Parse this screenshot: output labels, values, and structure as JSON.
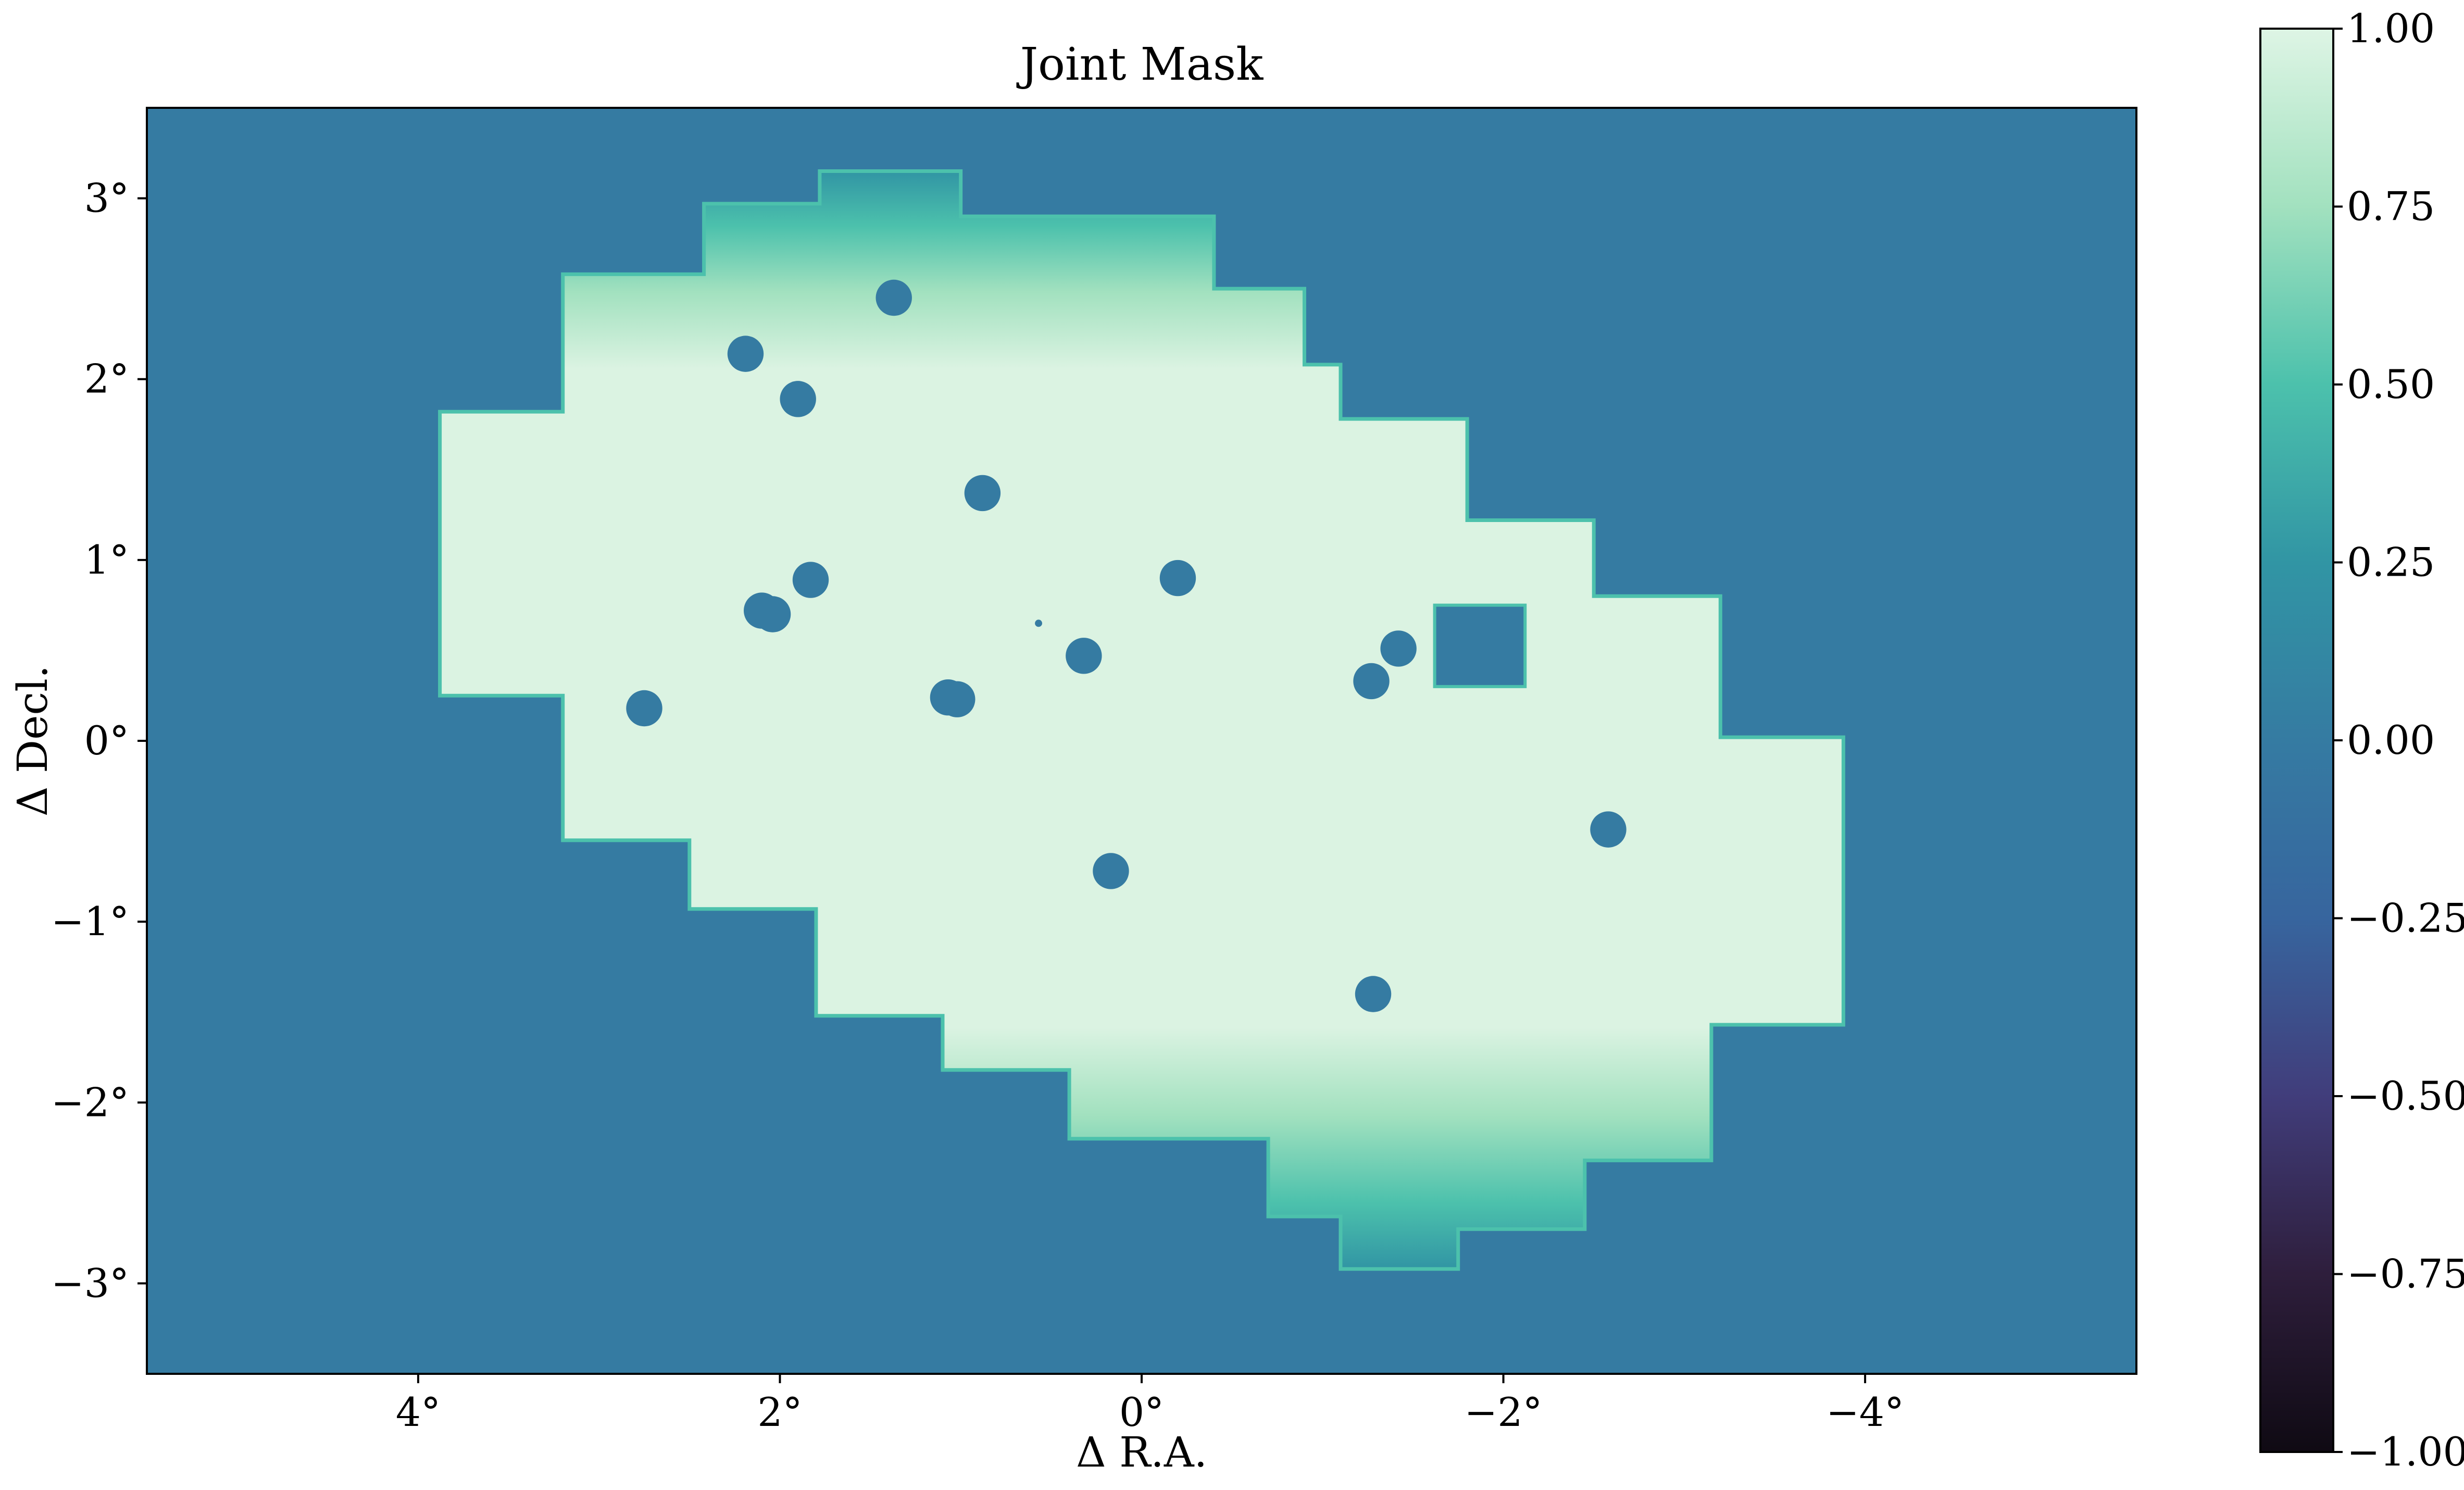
{
  "chart_data": {
    "type": "heatmap",
    "title": "Joint Mask",
    "xlabel": "Δ R.A.",
    "ylabel": "Δ Decl.",
    "xlim": [
      5.5,
      -5.5
    ],
    "ylim": [
      -3.5,
      3.5
    ],
    "x_ticks": [
      4,
      2,
      0,
      -2,
      -4
    ],
    "x_tick_labels": [
      "4°",
      "2°",
      "0°",
      "−2°",
      "−4°"
    ],
    "y_ticks": [
      3,
      2,
      1,
      0,
      -1,
      -2,
      -3
    ],
    "y_tick_labels": [
      "3°",
      "2°",
      "1°",
      "0°",
      "−1°",
      "−2°",
      "−3°"
    ],
    "background_value": 0.0,
    "mask_value": 0.92,
    "mask_outline_deg": [
      [
        1.78,
        3.15
      ],
      [
        1.0,
        3.15
      ],
      [
        1.0,
        2.9
      ],
      [
        -0.4,
        2.9
      ],
      [
        -0.4,
        2.5
      ],
      [
        -0.9,
        2.5
      ],
      [
        -0.9,
        2.08
      ],
      [
        -1.1,
        2.08
      ],
      [
        -1.1,
        1.78
      ],
      [
        -1.8,
        1.78
      ],
      [
        -1.8,
        1.22
      ],
      [
        -2.5,
        1.22
      ],
      [
        -2.5,
        0.8
      ],
      [
        -3.2,
        0.8
      ],
      [
        -3.2,
        0.02
      ],
      [
        -3.88,
        0.02
      ],
      [
        -3.88,
        -1.57
      ],
      [
        -3.15,
        -1.57
      ],
      [
        -3.15,
        -2.32
      ],
      [
        -2.45,
        -2.32
      ],
      [
        -2.45,
        -2.7
      ],
      [
        -1.75,
        -2.7
      ],
      [
        -1.75,
        -2.92
      ],
      [
        -1.1,
        -2.92
      ],
      [
        -1.1,
        -2.63
      ],
      [
        -0.7,
        -2.63
      ],
      [
        -0.7,
        -2.2
      ],
      [
        0.4,
        -2.2
      ],
      [
        0.4,
        -1.82
      ],
      [
        1.1,
        -1.82
      ],
      [
        1.1,
        -1.52
      ],
      [
        1.8,
        -1.52
      ],
      [
        1.8,
        -0.93
      ],
      [
        2.5,
        -0.93
      ],
      [
        2.5,
        -0.55
      ],
      [
        3.2,
        -0.55
      ],
      [
        3.2,
        0.25
      ],
      [
        3.88,
        0.25
      ],
      [
        3.88,
        1.82
      ],
      [
        3.2,
        1.82
      ],
      [
        3.2,
        2.58
      ],
      [
        2.42,
        2.58
      ],
      [
        2.42,
        2.97
      ],
      [
        1.78,
        2.97
      ]
    ],
    "masked_holes_deg": [
      {
        "x": 1.37,
        "y": 2.45,
        "r": 0.1
      },
      {
        "x": 2.19,
        "y": 2.14,
        "r": 0.1
      },
      {
        "x": 1.9,
        "y": 1.89,
        "r": 0.1
      },
      {
        "x": 0.88,
        "y": 1.37,
        "r": 0.1
      },
      {
        "x": 1.83,
        "y": 0.89,
        "r": 0.1
      },
      {
        "x": 2.1,
        "y": 0.72,
        "r": 0.1
      },
      {
        "x": 2.04,
        "y": 0.7,
        "r": 0.1
      },
      {
        "x": -0.2,
        "y": 0.9,
        "r": 0.1
      },
      {
        "x": 0.32,
        "y": 0.47,
        "r": 0.1
      },
      {
        "x": 1.02,
        "y": 0.23,
        "r": 0.1
      },
      {
        "x": 1.07,
        "y": 0.24,
        "r": 0.1
      },
      {
        "x": 2.75,
        "y": 0.18,
        "r": 0.1
      },
      {
        "x": -1.42,
        "y": 0.51,
        "r": 0.1
      },
      {
        "x": -1.27,
        "y": 0.33,
        "r": 0.1
      },
      {
        "x": -2.58,
        "y": -0.49,
        "r": 0.1
      },
      {
        "x": 0.17,
        "y": -0.72,
        "r": 0.1
      },
      {
        "x": -1.28,
        "y": -1.4,
        "r": 0.1
      },
      {
        "x": 0.57,
        "y": 0.65,
        "r": 0.02
      }
    ],
    "masked_rectangles_deg": [
      {
        "x0": -1.62,
        "x1": -2.12,
        "y0": 0.3,
        "y1": 0.75
      }
    ],
    "colorbar": {
      "min": -1.0,
      "max": 1.0,
      "ticks": [
        1.0,
        0.75,
        0.5,
        0.25,
        0.0,
        -0.25,
        -0.5,
        -0.75,
        -1.0
      ],
      "tick_labels": [
        "1.00",
        "0.75",
        "0.50",
        "0.25",
        "0.00",
        "−0.25",
        "−0.50",
        "−0.75",
        "−1.00"
      ],
      "colors": [
        "#0f0a13",
        "#2e1e3c",
        "#413d7b",
        "#37659e",
        "#357ba2",
        "#3195a4",
        "#4cc1ac",
        "#a2e1bf",
        "#def5e5"
      ]
    }
  }
}
